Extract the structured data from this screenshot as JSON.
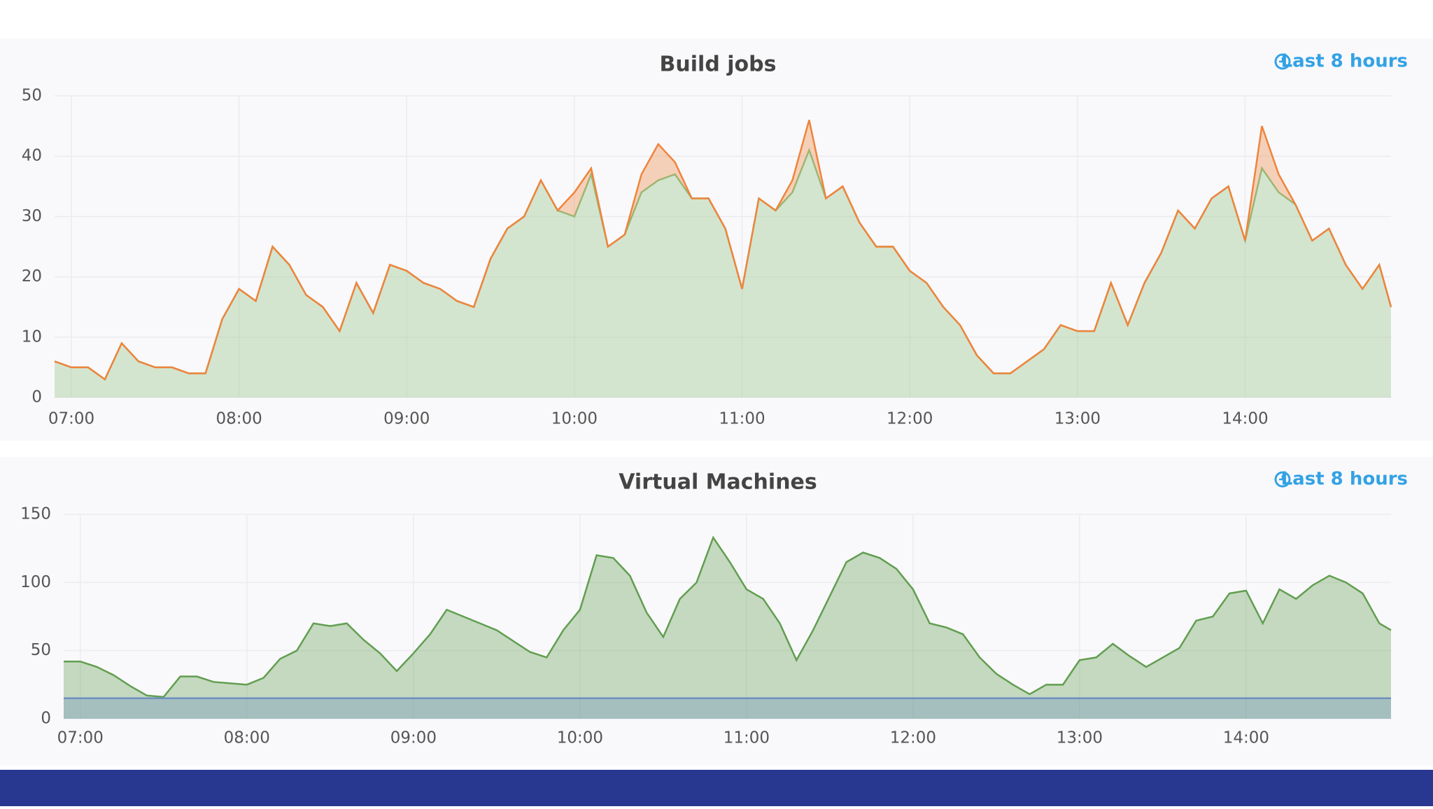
{
  "chart_data": [
    {
      "type": "area",
      "title": "Build jobs",
      "time_range": "Last 8 hours",
      "stacked": true,
      "grid": true,
      "x": [
        6.9,
        7.0,
        7.1,
        7.2,
        7.3,
        7.4,
        7.5,
        7.6,
        7.7,
        7.8,
        7.9,
        8.0,
        8.1,
        8.2,
        8.3,
        8.4,
        8.5,
        8.6,
        8.7,
        8.8,
        8.9,
        9.0,
        9.1,
        9.2,
        9.3,
        9.4,
        9.5,
        9.6,
        9.7,
        9.8,
        9.9,
        10.0,
        10.1,
        10.2,
        10.3,
        10.4,
        10.5,
        10.6,
        10.7,
        10.8,
        10.9,
        11.0,
        11.1,
        11.2,
        11.3,
        11.4,
        11.5,
        11.6,
        11.7,
        11.8,
        11.9,
        12.0,
        12.1,
        12.2,
        12.3,
        12.4,
        12.5,
        12.6,
        12.7,
        12.8,
        12.9,
        13.0,
        13.1,
        13.2,
        13.3,
        13.4,
        13.5,
        13.6,
        13.7,
        13.8,
        13.9,
        14.0,
        14.1,
        14.2,
        14.3,
        14.4,
        14.5,
        14.6,
        14.7,
        14.8,
        14.87
      ],
      "series": [
        {
          "color": "#8fbf7f",
          "values": [
            6,
            5,
            5,
            3,
            9,
            6,
            5,
            5,
            4,
            4,
            13,
            18,
            16,
            25,
            22,
            17,
            15,
            11,
            19,
            14,
            22,
            21,
            19,
            18,
            16,
            15,
            23,
            28,
            30,
            36,
            31,
            30,
            37,
            25,
            27,
            34,
            36,
            37,
            33,
            33,
            28,
            18,
            33,
            31,
            34,
            41,
            33,
            35,
            29,
            25,
            25,
            21,
            19,
            15,
            12,
            7,
            4,
            4,
            6,
            8,
            12,
            11,
            11,
            19,
            12,
            19,
            24,
            31,
            28,
            33,
            35,
            26,
            38,
            34,
            32,
            26,
            28,
            22,
            18,
            22,
            15
          ]
        },
        {
          "color": "#ef843c",
          "values": [
            0,
            0,
            0,
            0,
            0,
            0,
            0,
            0,
            0,
            0,
            0,
            0,
            0,
            0,
            0,
            0,
            0,
            0,
            0,
            0,
            0,
            0,
            0,
            0,
            0,
            0,
            0,
            0,
            0,
            0,
            0,
            4,
            1,
            0,
            0,
            3,
            6,
            2,
            0,
            0,
            0,
            0,
            0,
            0,
            2,
            5,
            0,
            0,
            0,
            0,
            0,
            0,
            0,
            0,
            0,
            0,
            0,
            0,
            0,
            0,
            0,
            0,
            0,
            0,
            0,
            0,
            0,
            0,
            0,
            0,
            0,
            0,
            7,
            3,
            0,
            0,
            0,
            0,
            0,
            0,
            0
          ]
        }
      ],
      "xlim": [
        6.9,
        14.87
      ],
      "ylim": [
        0,
        50
      ],
      "yticks": [
        0,
        10,
        20,
        30,
        40,
        50
      ],
      "xticks": [
        {
          "value": 7,
          "label": "07:00"
        },
        {
          "value": 8,
          "label": "08:00"
        },
        {
          "value": 9,
          "label": "09:00"
        },
        {
          "value": 10,
          "label": "10:00"
        },
        {
          "value": 11,
          "label": "11:00"
        },
        {
          "value": 12,
          "label": "12:00"
        },
        {
          "value": 13,
          "label": "13:00"
        },
        {
          "value": 14,
          "label": "14:00"
        }
      ]
    },
    {
      "type": "area",
      "title": "Virtual Machines",
      "time_range": "Last 8 hours",
      "stacked": false,
      "grid": true,
      "x": [
        6.9,
        7.0,
        7.1,
        7.2,
        7.3,
        7.4,
        7.5,
        7.6,
        7.7,
        7.8,
        7.9,
        8.0,
        8.1,
        8.2,
        8.3,
        8.4,
        8.5,
        8.6,
        8.7,
        8.8,
        8.9,
        9.0,
        9.1,
        9.2,
        9.3,
        9.4,
        9.5,
        9.6,
        9.7,
        9.8,
        9.9,
        10.0,
        10.1,
        10.2,
        10.3,
        10.4,
        10.5,
        10.6,
        10.7,
        10.8,
        10.9,
        11.0,
        11.1,
        11.2,
        11.3,
        11.4,
        11.5,
        11.6,
        11.7,
        11.8,
        11.9,
        12.0,
        12.1,
        12.2,
        12.3,
        12.4,
        12.5,
        12.6,
        12.7,
        12.8,
        12.9,
        13.0,
        13.1,
        13.2,
        13.3,
        13.4,
        13.5,
        13.6,
        13.7,
        13.8,
        13.9,
        14.0,
        14.1,
        14.2,
        14.3,
        14.4,
        14.5,
        14.6,
        14.7,
        14.8,
        14.87
      ],
      "series": [
        {
          "color": "#629e51",
          "values": [
            42,
            42,
            38,
            32,
            24,
            17,
            16,
            31,
            31,
            27,
            26,
            25,
            30,
            44,
            50,
            70,
            68,
            70,
            58,
            48,
            35,
            48,
            62,
            80,
            75,
            70,
            65,
            57,
            49,
            45,
            65,
            80,
            120,
            118,
            105,
            78,
            60,
            88,
            100,
            133,
            115,
            95,
            88,
            70,
            43,
            65,
            90,
            115,
            122,
            118,
            110,
            95,
            70,
            67,
            62,
            45,
            33,
            25,
            18,
            25,
            25,
            43,
            45,
            55,
            46,
            38,
            45,
            52,
            72,
            75,
            92,
            94,
            70,
            95,
            88,
            98,
            105,
            100,
            92,
            70,
            65
          ]
        },
        {
          "color": "#6d8fc0",
          "values": [
            15,
            15,
            15,
            15,
            15,
            15,
            15,
            15,
            15,
            15,
            15,
            15,
            15,
            15,
            15,
            15,
            15,
            15,
            15,
            15,
            15,
            15,
            15,
            15,
            15,
            15,
            15,
            15,
            15,
            15,
            15,
            15,
            15,
            15,
            15,
            15,
            15,
            15,
            15,
            15,
            15,
            15,
            15,
            15,
            15,
            15,
            15,
            15,
            15,
            15,
            15,
            15,
            15,
            15,
            15,
            15,
            15,
            15,
            15,
            15,
            15,
            15,
            15,
            15,
            15,
            15,
            15,
            15,
            15,
            15,
            15,
            15,
            15,
            15,
            15,
            15,
            15,
            15,
            15,
            15,
            15
          ]
        }
      ],
      "xlim": [
        6.9,
        14.87
      ],
      "ylim": [
        0,
        150
      ],
      "yticks": [
        0,
        50,
        100,
        150
      ],
      "xticks": [
        {
          "value": 7,
          "label": "07:00"
        },
        {
          "value": 8,
          "label": "08:00"
        },
        {
          "value": 9,
          "label": "09:00"
        },
        {
          "value": 10,
          "label": "10:00"
        },
        {
          "value": 11,
          "label": "11:00"
        },
        {
          "value": 12,
          "label": "12:00"
        },
        {
          "value": 13,
          "label": "13:00"
        },
        {
          "value": 14,
          "label": "14:00"
        }
      ]
    }
  ]
}
